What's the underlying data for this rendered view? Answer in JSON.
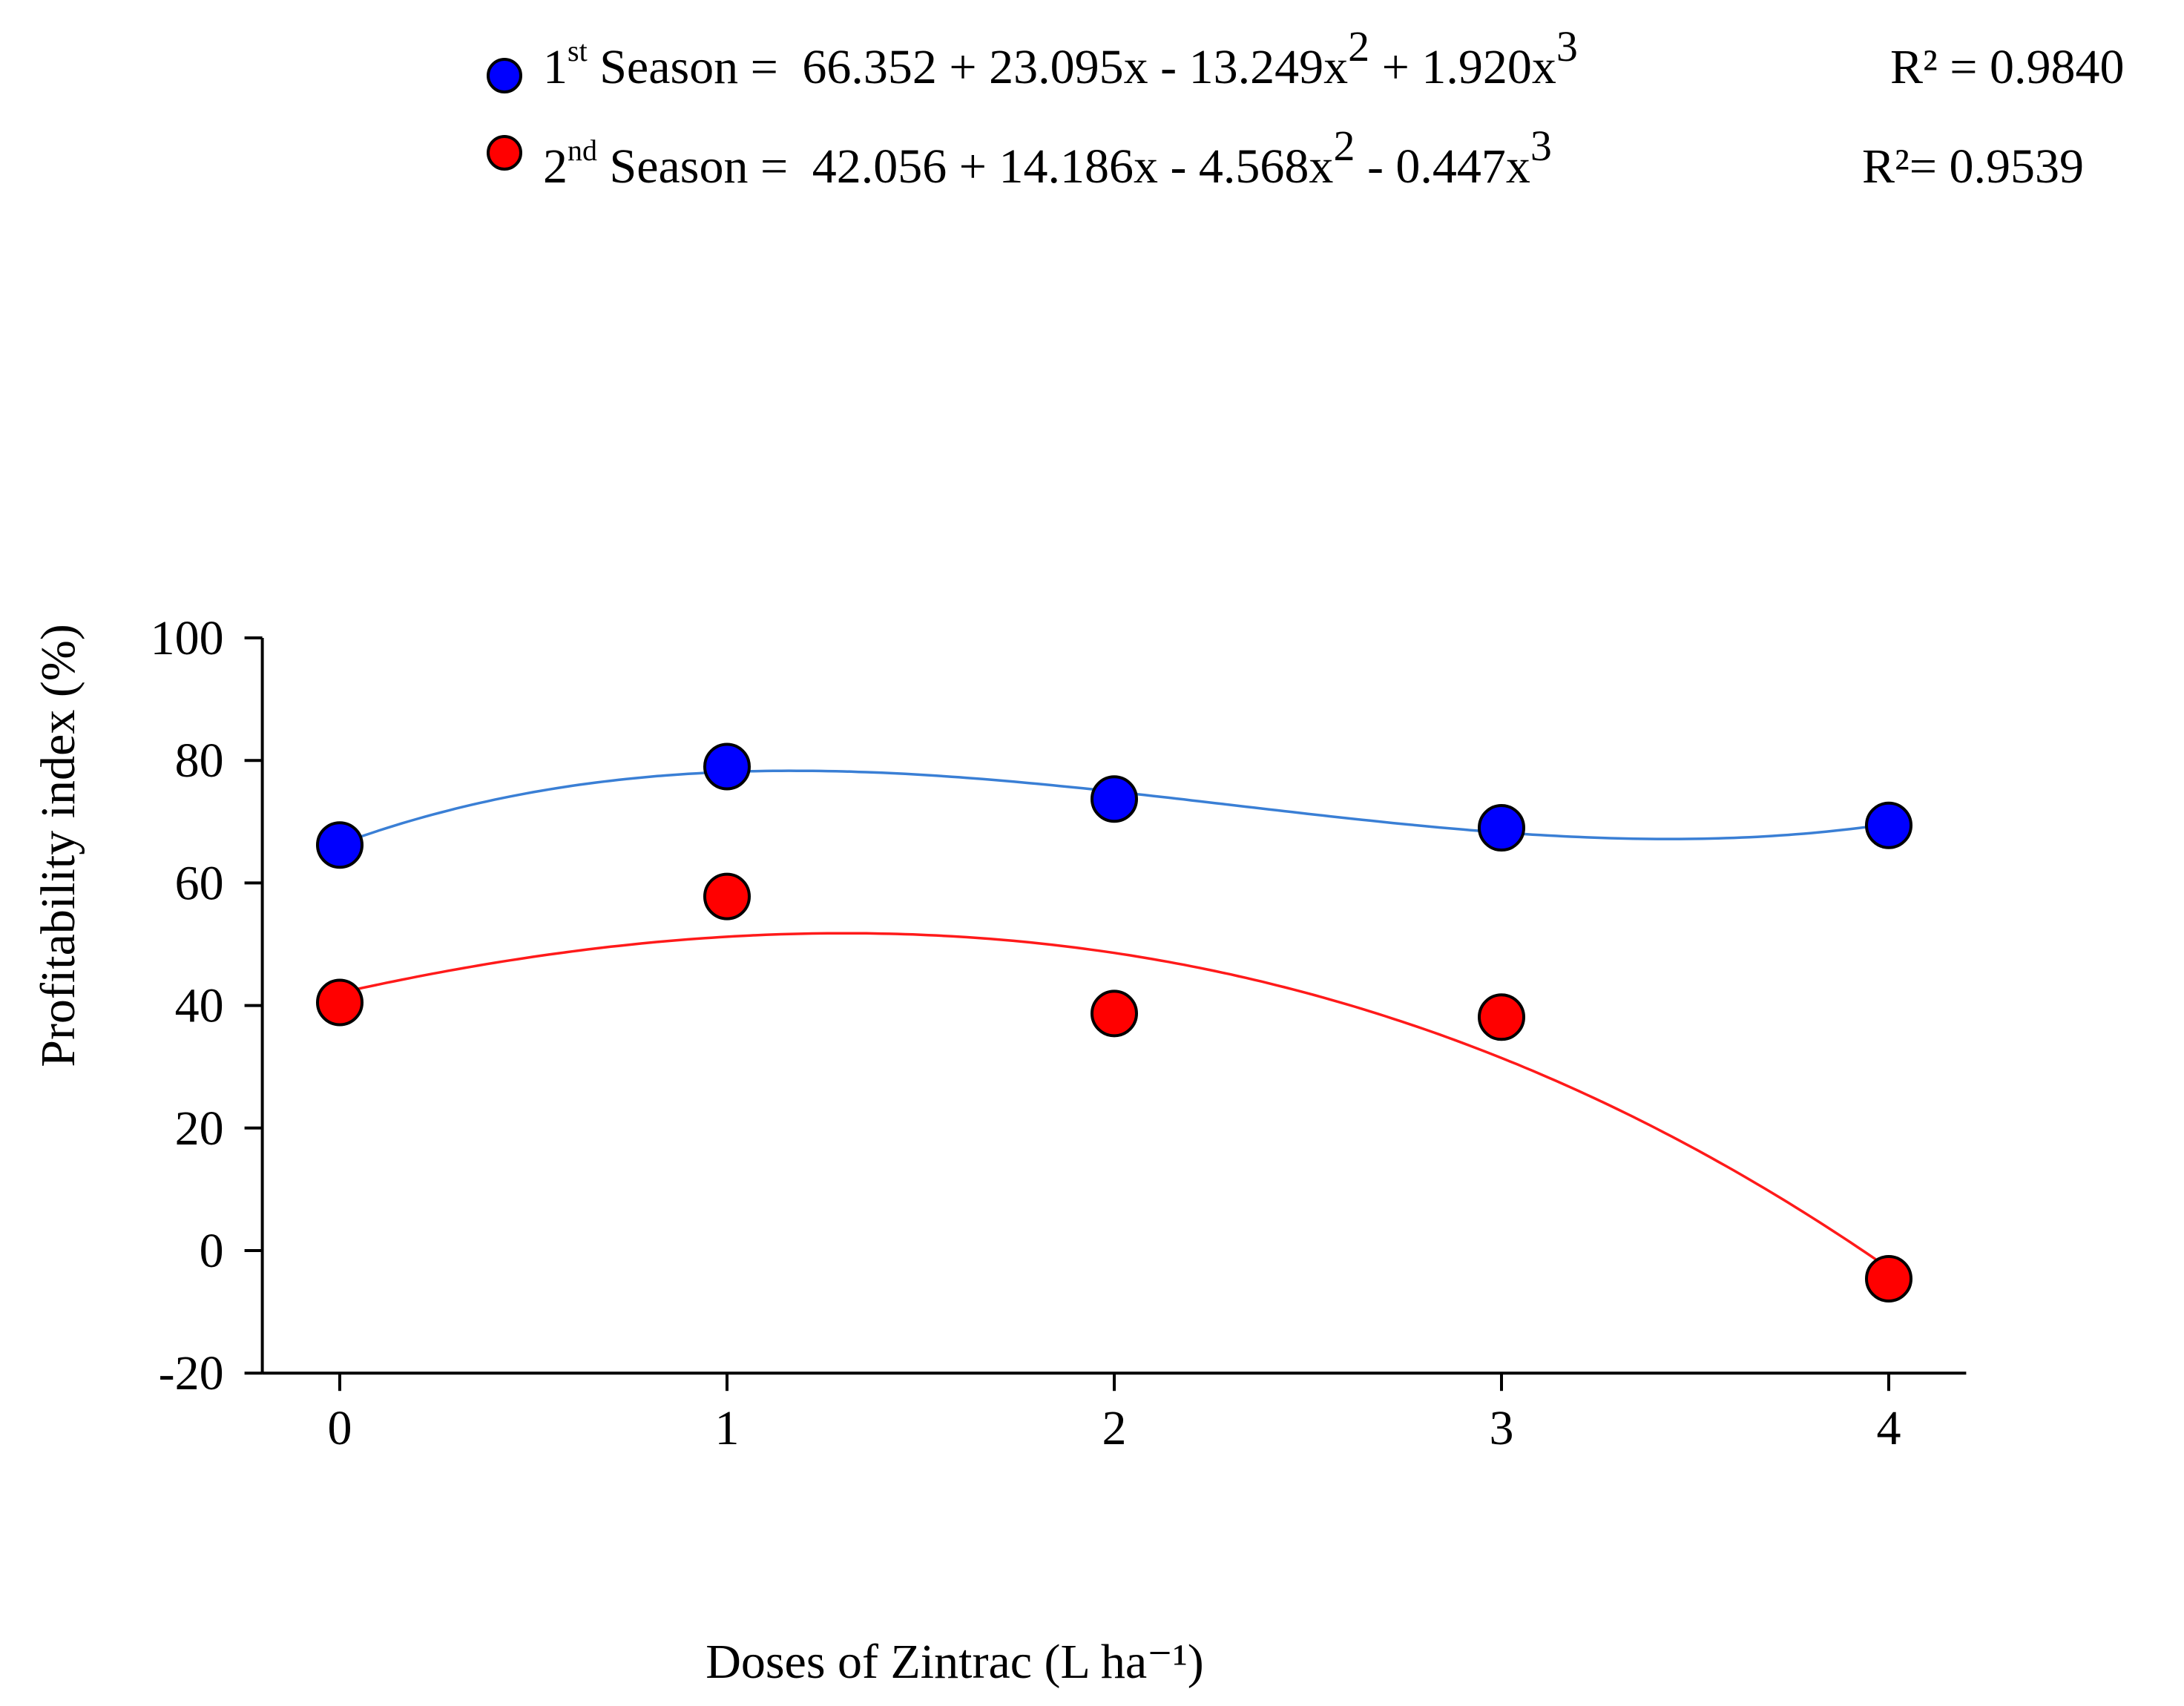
{
  "chart_data": {
    "type": "scatter",
    "title": "",
    "xlabel": "Doses of Zintrac (L ha⁻¹)",
    "ylabel": "Profitability index (%)",
    "xlim": [
      -0.2,
      4.2
    ],
    "ylim": [
      -20,
      100
    ],
    "x_ticks": [
      0,
      1,
      2,
      3,
      4
    ],
    "y_ticks": [
      -20,
      0,
      20,
      40,
      60,
      80,
      100
    ],
    "x_tick_labels": [
      "0",
      "1",
      "2",
      "3",
      "4"
    ],
    "y_tick_labels": [
      "-20",
      "0",
      "20",
      "40",
      "60",
      "80",
      "100"
    ],
    "grid": false,
    "legend_position": "top",
    "series": [
      {
        "name": "1st Season",
        "label_base": "1",
        "label_sup": "st",
        "label_rest": " Season",
        "equation": {
          "lhs": " = ",
          "a": "66.352",
          "t1": " + 23.095x",
          "t2": " - 13.249x",
          "e2": "2",
          "t3": " + 1.920x",
          "e3": "3"
        },
        "coefficients": [
          66.352,
          23.095,
          -13.249,
          1.92
        ],
        "r2_label": "R² = 0.9840",
        "color": "#0000ff",
        "line_color": "#3a7fd5",
        "x": [
          0,
          1,
          2,
          3,
          4
        ],
        "y": [
          66.2,
          79.0,
          73.7,
          69.0,
          69.4
        ]
      },
      {
        "name": "2nd Season",
        "label_base": "2",
        "label_sup": "nd",
        "label_rest": " Season",
        "equation": {
          "lhs": " = ",
          "a": "42.056",
          "t1": " + 14.186x",
          "t2": " - 4.568x",
          "e2": "2",
          "t3": " - 0.447x",
          "e3": "3"
        },
        "coefficients": [
          42.056,
          14.186,
          -4.568,
          -0.447
        ],
        "r2_label": "R²= 0.9539",
        "color": "#ff0000",
        "line_color": "#ff1a1a",
        "x": [
          0,
          1,
          2,
          3,
          4
        ],
        "y": [
          40.5,
          57.8,
          38.7,
          38.1,
          -4.6
        ]
      }
    ]
  }
}
